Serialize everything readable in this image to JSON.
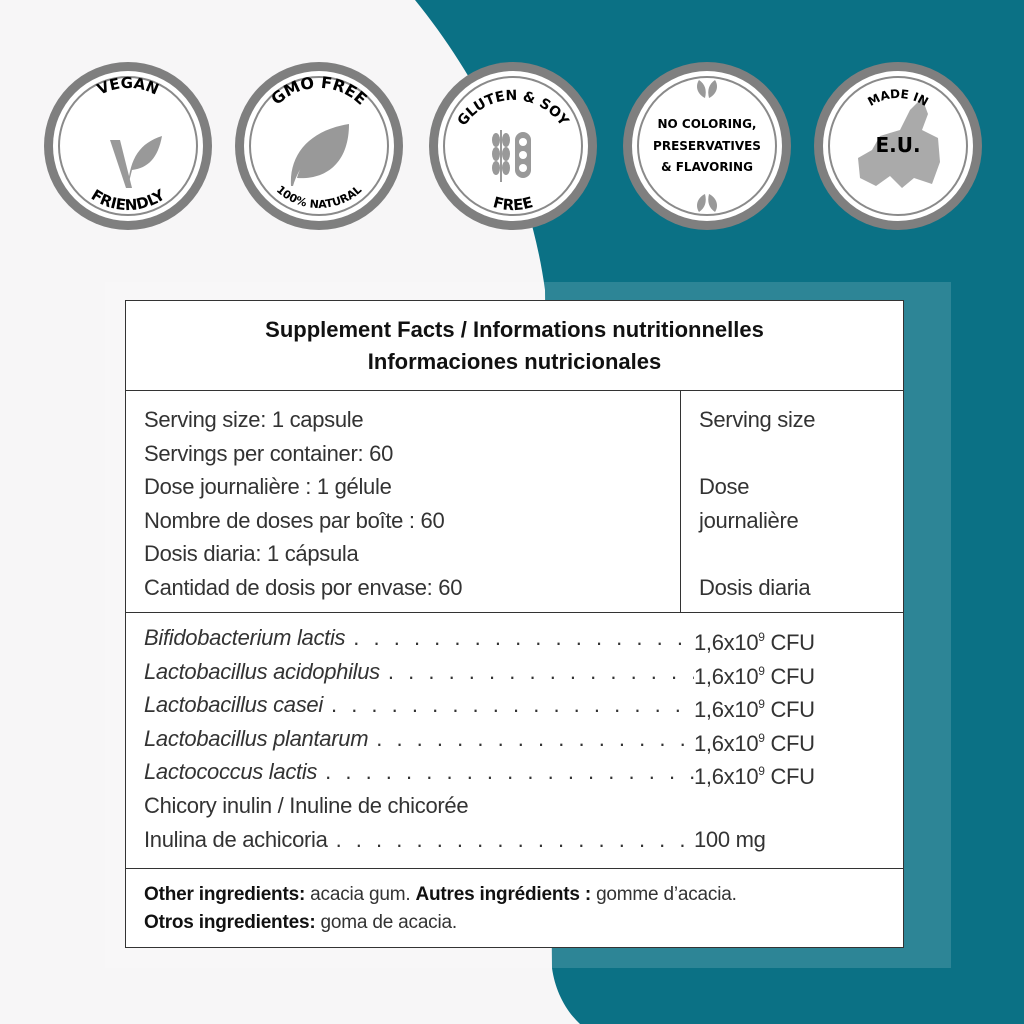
{
  "colors": {
    "teal": "#0b7185",
    "background": "#f7f6f7",
    "badge_ring": "#7f7f7f"
  },
  "badges": [
    {
      "top": "VEGAN",
      "bottom": "FRIENDLY",
      "icon": "v-leaf-icon"
    },
    {
      "top": "GMO FREE",
      "bottom": "100% NATURAL",
      "icon": "leaf-icon"
    },
    {
      "top": "GLUTEN & SOY",
      "bottom": "FREE",
      "icon": "wheat-soy-icon"
    },
    {
      "lines": [
        "NO COLORING,",
        "PRESERVATIVES",
        "& FLAVORING"
      ],
      "icon": "leaves-icon"
    },
    {
      "top": "MADE IN",
      "center": "E.U.",
      "icon": "europe-map-icon"
    }
  ],
  "facts": {
    "title_line1": "Supplement Facts / Informations nutritionnelles",
    "title_line2": "Informaciones nutricionales",
    "serving_left": [
      "Serving size: 1 capsule",
      "Servings per container: 60",
      "Dose journalière : 1 gélule",
      "Nombre de doses par boîte : 60",
      "Dosis diaria: 1 cápsula",
      "Cantidad de dosis por envase: 60"
    ],
    "serving_right": [
      "Serving size",
      "",
      "Dose",
      "journalière",
      "",
      "Dosis diaria"
    ],
    "ingredients": [
      {
        "name": "Bifidobacterium lactis",
        "amount": "1,6x10",
        "exp": "9",
        "unit": " CFU"
      },
      {
        "name": "Lactobacillus acidophilus",
        "amount": "1,6x10",
        "exp": "9",
        "unit": " CFU"
      },
      {
        "name": "Lactobacillus casei",
        "amount": "1,6x10",
        "exp": "9",
        "unit": " CFU"
      },
      {
        "name": "Lactobacillus plantarum",
        "amount": "1,6x10",
        "exp": "9",
        "unit": " CFU"
      },
      {
        "name": "Lactococcus lactis",
        "amount": "1,6x10",
        "exp": "9",
        "unit": " CFU"
      }
    ],
    "inulin_line1": "Chicory inulin / Inuline de chicorée",
    "inulin_line2": "Inulina de achicoria",
    "inulin_amount": "100 mg",
    "other_en_label": "Other ingredients:",
    "other_en": " acacia gum. ",
    "other_fr_label": "Autres ingrédients :",
    "other_fr": " gomme d’acacia.",
    "other_es_label": "Otros ingredientes:",
    "other_es": " goma de acacia."
  }
}
